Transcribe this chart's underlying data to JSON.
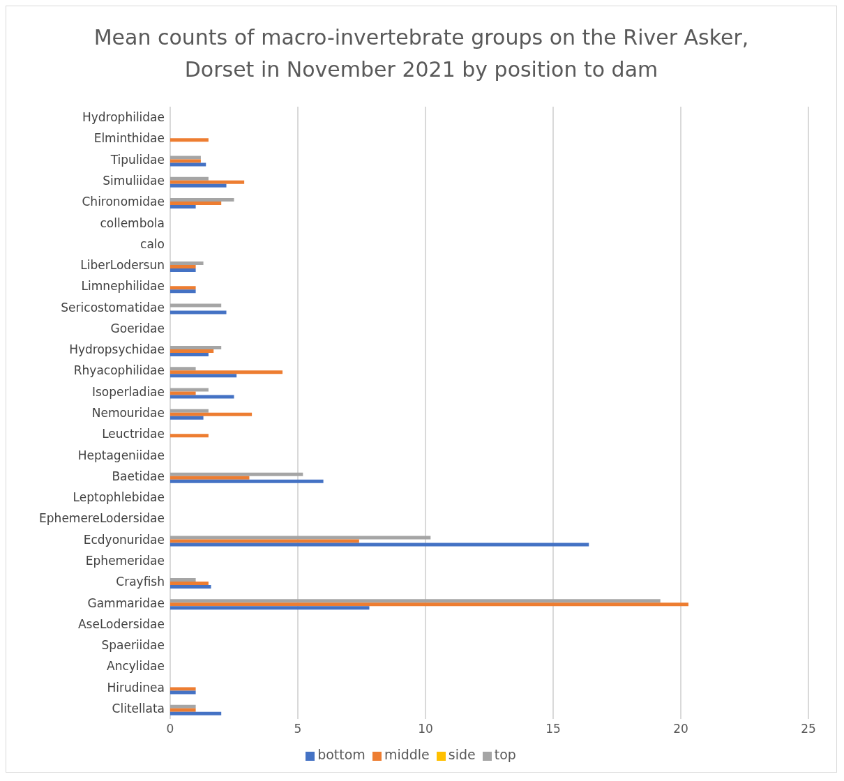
{
  "chart_data": {
    "type": "bar",
    "orientation": "horizontal",
    "title": "Mean counts of macro-invertebrate groups on the River Asker, Dorset in November 2021 by position to dam",
    "categories": [
      "Hydrophilidae",
      "Elminthidae",
      "Tipulidae",
      "Simuliidae",
      "Chironomidae",
      "collembola",
      "calo",
      "LiberLodersun",
      "Limnephilidae",
      "Sericostomatidae",
      "Goeridae",
      "Hydropsychidae",
      "Rhyacophilidae",
      "Isoperladiae",
      "Nemouridae",
      "Leuctridae",
      "Heptageniidae",
      "Baetidae",
      "Leptophlebidae",
      "EphemereLodersidae",
      "Ecdyonuridae",
      "Ephemeridae",
      "Crayfish",
      "Gammaridae",
      "AseLodersidae",
      "Spaeriidae",
      "Ancylidae",
      "Hirudinea",
      "Clitellata"
    ],
    "series": [
      {
        "name": "side",
        "color": "#ffc000",
        "values": [
          0,
          0,
          0,
          0,
          0,
          0,
          0,
          0,
          0,
          0,
          0,
          0,
          0,
          0,
          0,
          0,
          0,
          0,
          0,
          0,
          0,
          0,
          0,
          0,
          0,
          0,
          0,
          0,
          0
        ]
      },
      {
        "name": "top",
        "color": "#a5a5a5",
        "values": [
          0,
          0,
          1.2,
          1.5,
          2.5,
          0,
          0,
          1.3,
          0,
          2,
          0,
          2,
          1,
          1.5,
          1.5,
          0,
          0,
          5.2,
          0,
          0,
          10.2,
          0,
          1,
          19.2,
          0,
          0,
          0,
          0,
          1
        ]
      },
      {
        "name": "middle",
        "color": "#ed7d31",
        "values": [
          0,
          1.5,
          1.2,
          2.9,
          2,
          0,
          0,
          1,
          1,
          0,
          0,
          1.7,
          4.4,
          1,
          3.2,
          1.5,
          0,
          3.1,
          0,
          0,
          7.4,
          0,
          1.5,
          20.3,
          0,
          0,
          0,
          1,
          1
        ]
      },
      {
        "name": "bottom",
        "color": "#4472c4",
        "values": [
          0,
          0,
          1.4,
          2.2,
          1,
          0,
          0,
          1,
          1,
          2.2,
          0,
          1.5,
          2.6,
          2.5,
          1.3,
          0,
          0,
          6,
          0,
          0,
          16.4,
          0,
          1.6,
          7.8,
          0,
          0,
          0,
          1,
          2
        ]
      }
    ],
    "xlim": [
      0,
      25
    ],
    "xticks": [
      0,
      5,
      10,
      15,
      20,
      25
    ],
    "grid": "x",
    "legend": "bottom"
  }
}
